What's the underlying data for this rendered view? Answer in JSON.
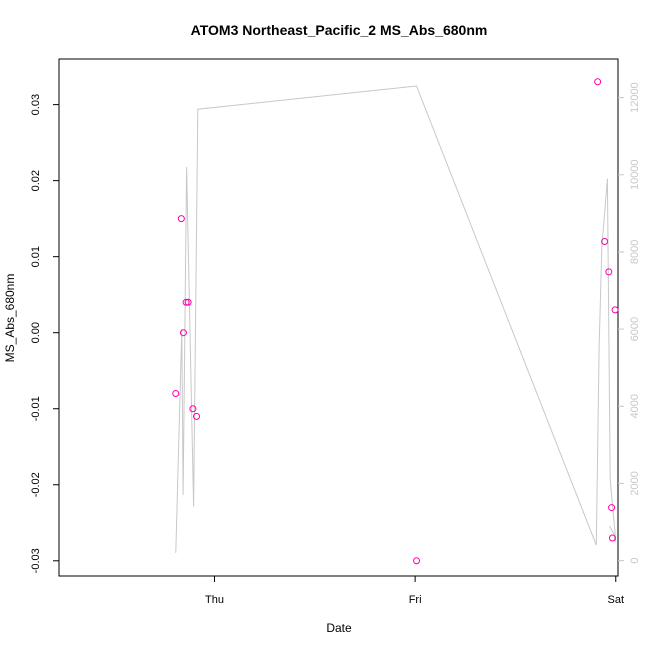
{
  "chart_data": {
    "type": "scatter",
    "title": "ATOM3 Northeast_Pacific_2 MS_Abs_680nm",
    "xlabel": "Date",
    "ylabel": "MS_Abs_680nm",
    "x_ticks": [
      "Thu",
      "Fri",
      "Sat"
    ],
    "xlim": [
      "Wed 05:24",
      "Sat 00:16"
    ],
    "ylim": [
      -0.032,
      0.036
    ],
    "y_ticks": [
      -0.03,
      -0.02,
      -0.01,
      0.0,
      0.01,
      0.02,
      0.03
    ],
    "y_tick_labels": [
      "-0.03",
      "-0.02",
      "-0.01",
      "0.00",
      "0.01",
      "0.02",
      "0.03"
    ],
    "y2lim": [
      -400,
      13000
    ],
    "y2_ticks": [
      0,
      2000,
      4000,
      6000,
      8000,
      10000,
      12000
    ],
    "y2_tick_labels": [
      "0",
      "2000",
      "4000",
      "6000",
      "8000",
      "10000",
      "12000"
    ],
    "grid": false,
    "series": [
      {
        "kind": "points",
        "color": "#ff00aa",
        "marker": "open-circle",
        "points": [
          {
            "x": "Wed 19:22",
            "y": -0.008
          },
          {
            "x": "Wed 20:02",
            "y": 0.015
          },
          {
            "x": "Wed 20:17",
            "y": 0.0
          },
          {
            "x": "Wed 20:36",
            "y": 0.004
          },
          {
            "x": "Wed 20:51",
            "y": 0.004
          },
          {
            "x": "Wed 21:25",
            "y": -0.01
          },
          {
            "x": "Wed 21:51",
            "y": -0.011
          },
          {
            "x": "Fri 00:10",
            "y": -0.03
          },
          {
            "x": "Fri 21:50",
            "y": 0.033
          },
          {
            "x": "Fri 22:40",
            "y": 0.012
          },
          {
            "x": "Fri 23:10",
            "y": 0.008
          },
          {
            "x": "Fri 23:30",
            "y": -0.023
          },
          {
            "x": "Fri 23:36",
            "y": -0.027
          },
          {
            "x": "Fri 23:55",
            "y": 0.003
          }
        ]
      },
      {
        "kind": "line",
        "axis": "right",
        "color": "#c8c8c8",
        "points": [
          {
            "x": "Wed 19:22",
            "y": 200
          },
          {
            "x": "Wed 20:05",
            "y": 6000
          },
          {
            "x": "Wed 20:15",
            "y": 1700
          },
          {
            "x": "Wed 20:40",
            "y": 10200
          },
          {
            "x": "Wed 21:30",
            "y": 1400
          },
          {
            "x": "Wed 22:00",
            "y": 11700
          },
          {
            "x": "Fri 00:10",
            "y": 12300
          },
          {
            "x": "Fri 21:40",
            "y": 400
          },
          {
            "x": "Fri 22:00",
            "y": 5500
          },
          {
            "x": "Fri 22:20",
            "y": 8100
          },
          {
            "x": "Fri 23:00",
            "y": 9900
          },
          {
            "x": "Fri 23:20",
            "y": 2100
          },
          {
            "x": "Fri 23:55",
            "y": 700
          },
          {
            "x": "Fri 23:59",
            "y": 500
          }
        ]
      },
      {
        "kind": "line",
        "axis": "right",
        "color": "#c8c8c8",
        "points": [
          {
            "x": "Fri 23:15",
            "y": 900
          },
          {
            "x": "Fri 23:45",
            "y": 700
          },
          {
            "x": "Fri 23:55",
            "y": 500
          }
        ]
      }
    ]
  }
}
